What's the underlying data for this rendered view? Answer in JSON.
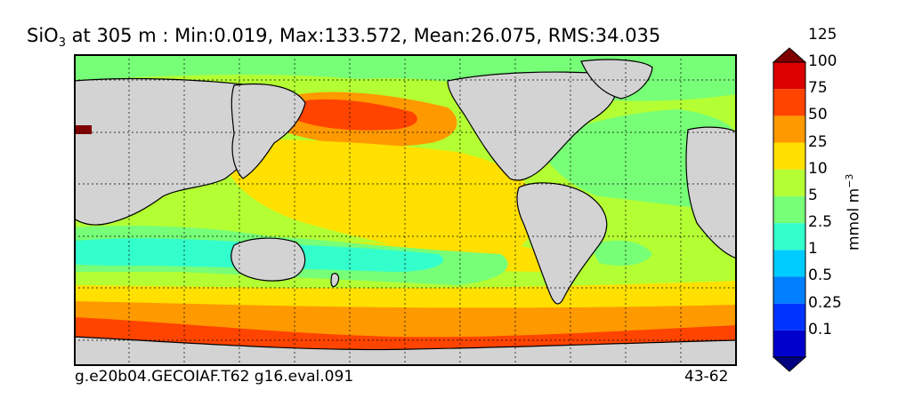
{
  "title": {
    "species": "SiO",
    "subscript": "3",
    "rest": " at 305 m : Min:0.019, Max:133.572, Mean:26.075, RMS:34.035"
  },
  "footer": {
    "left": "g.e20b04.GECOIAF.T62 g16.eval.091",
    "right": "43-62"
  },
  "colorbar": {
    "unit_base": "mmol m",
    "unit_exp": "−3",
    "levels": [
      "0.1",
      "0.25",
      "0.5",
      "1",
      "2.5",
      "5",
      "10",
      "25",
      "50",
      "75",
      "100",
      "125"
    ],
    "colors": [
      "#000080",
      "#0000cd",
      "#0033ff",
      "#0080ff",
      "#00ccff",
      "#33ffcc",
      "#77ff77",
      "#b3ff33",
      "#ffe000",
      "#ff9900",
      "#ff4400",
      "#dd0000",
      "#800000"
    ]
  },
  "map": {
    "land_color": "#d3d3d3",
    "ice_color": "#ffffff",
    "grid": true
  }
}
